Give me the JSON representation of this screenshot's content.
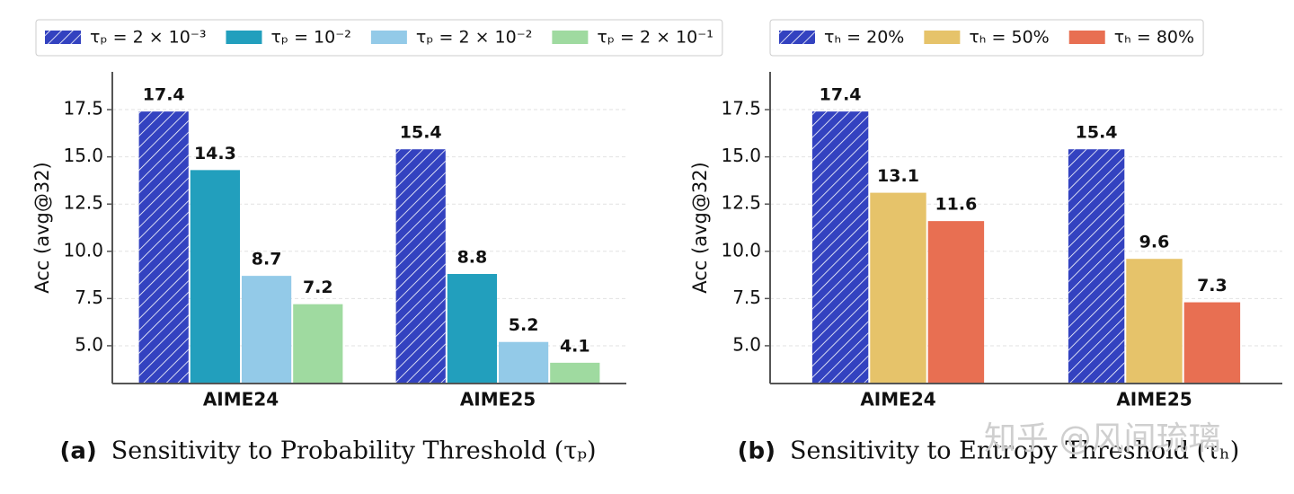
{
  "chart_data": [
    {
      "type": "bar",
      "caption_label": "(a)",
      "caption": "Sensitivity to Probability Threshold (τₚ)",
      "y_label": "Acc (avg@32)",
      "categories": [
        "AIME24",
        "AIME25"
      ],
      "series": [
        {
          "name": "τₚ = 2 × 10⁻³",
          "color": "#3342c0",
          "hatch": true,
          "values": [
            17.4,
            15.4
          ]
        },
        {
          "name": "τₚ = 10⁻²",
          "color": "#229fbd",
          "values": [
            14.3,
            8.8
          ]
        },
        {
          "name": "τₚ = 2 × 10⁻²",
          "color": "#93cae8",
          "values": [
            8.7,
            5.2
          ]
        },
        {
          "name": "τₚ = 2 × 10⁻¹",
          "color": "#9fdaa0",
          "values": [
            7.2,
            4.1
          ]
        }
      ],
      "ylim": [
        3,
        19.5
      ],
      "yticks": [
        {
          "value": 5,
          "label": "5.0"
        },
        7.5,
        {
          "value": 10,
          "label": "10.0"
        },
        12.5,
        {
          "value": 15,
          "label": "15.0"
        },
        17.5
      ],
      "grid": true,
      "legend": "top"
    },
    {
      "type": "bar",
      "caption_label": "(b)",
      "caption": "Sensitivity to Entropy Threshold (τₕ)",
      "y_label": "Acc (avg@32)",
      "categories": [
        "AIME24",
        "AIME25"
      ],
      "series": [
        {
          "name": "τₕ = 20%",
          "color": "#3342c0",
          "hatch": true,
          "values": [
            17.4,
            15.4
          ]
        },
        {
          "name": "τₕ = 50%",
          "color": "#e6c36a",
          "values": [
            13.1,
            9.6
          ]
        },
        {
          "name": "τₕ = 80%",
          "color": "#e86f52",
          "values": [
            11.6,
            7.3
          ]
        }
      ],
      "ylim": [
        3,
        19.5
      ],
      "yticks": [
        {
          "value": 5,
          "label": "5.0"
        },
        7.5,
        {
          "value": 10,
          "label": "10.0"
        },
        12.5,
        {
          "value": 15,
          "label": "15.0"
        },
        17.5
      ],
      "grid": true,
      "legend": "top"
    }
  ],
  "watermark": "知乎 @风间琉璃"
}
